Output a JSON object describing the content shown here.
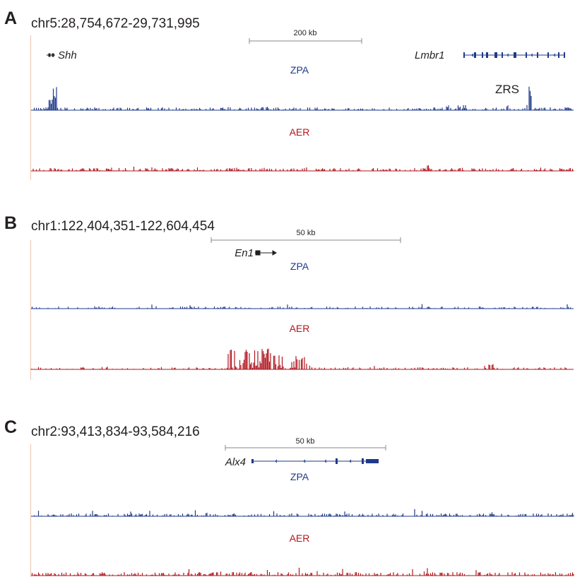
{
  "panels": [
    {
      "letter": "A",
      "coordinates": "chr5:28,754,672-29,731,995",
      "scalebar": "200 kb",
      "genes": [
        {
          "name": "Shh",
          "strand": "bidirectional"
        },
        {
          "name": "Lmbr1",
          "strand": "minus"
        }
      ],
      "tracks": [
        {
          "name": "ZPA",
          "color": "#1f3a8a"
        },
        {
          "name": "AER",
          "color": "#b0161e"
        }
      ],
      "annotation": "ZRS"
    },
    {
      "letter": "B",
      "coordinates": "chr1:122,404,351-122,604,454",
      "scalebar": "50 kb",
      "genes": [
        {
          "name": "En1",
          "strand": "bidirectional"
        }
      ],
      "tracks": [
        {
          "name": "ZPA",
          "color": "#1f3a8a"
        },
        {
          "name": "AER",
          "color": "#b0161e"
        }
      ]
    },
    {
      "letter": "C",
      "coordinates": "chr2:93,413,834-93,584,216",
      "scalebar": "50 kb",
      "genes": [
        {
          "name": "Alx4",
          "strand": "minus"
        }
      ],
      "tracks": [
        {
          "name": "ZPA",
          "color": "#1f3a8a"
        },
        {
          "name": "AER",
          "color": "#b0161e"
        }
      ]
    }
  ],
  "colors": {
    "zpa": "#1f3a8a",
    "aer": "#b0161e",
    "gene": "#1f3a8a",
    "axis": "#8a8a8a"
  }
}
